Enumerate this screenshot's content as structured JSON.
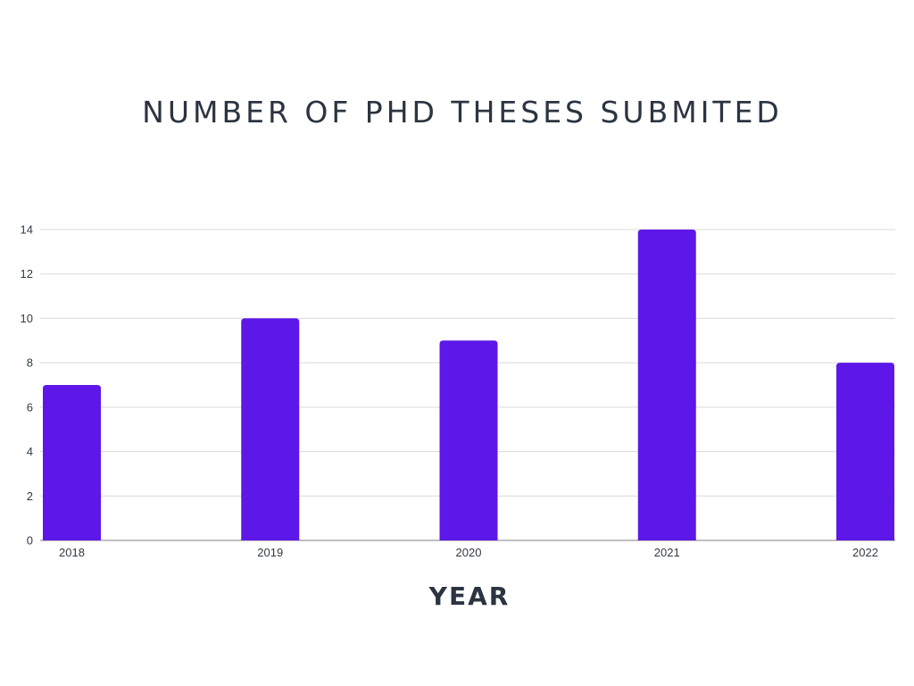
{
  "chart_data": {
    "type": "bar",
    "title": "NUMBER OF PHD THESES SUBMITED",
    "xlabel": "YEAR",
    "ylabel": "",
    "categories": [
      "2018",
      "2019",
      "2020",
      "2021",
      "2022"
    ],
    "values": [
      7,
      10,
      9,
      14,
      8
    ],
    "ylim": [
      0,
      14
    ],
    "yticks": [
      0,
      2,
      4,
      6,
      8,
      10,
      12,
      14
    ],
    "grid": true,
    "legend": "none",
    "bar_color": "#5d17e8",
    "grid_color": "#d9d9d9",
    "axis_color": "#aaaaaa"
  }
}
